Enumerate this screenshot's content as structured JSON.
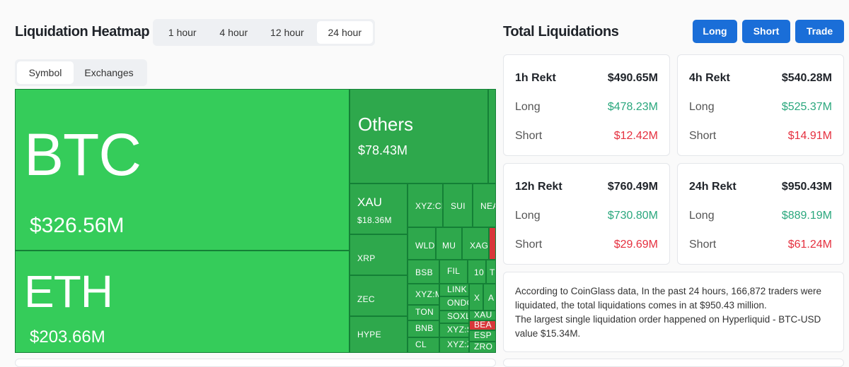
{
  "heatmap": {
    "title": "Liquidation Heatmap",
    "time_tabs": [
      "1 hour",
      "4 hour",
      "12 hour",
      "24 hour"
    ],
    "active_time_tab": "24 hour",
    "view_tabs": [
      "Symbol",
      "Exchanges"
    ],
    "active_view_tab": "Symbol",
    "tiles": {
      "btc": {
        "symbol": "BTC",
        "value": "$326.56M"
      },
      "eth": {
        "symbol": "ETH",
        "value": "$203.66M"
      },
      "others": {
        "symbol": "Others",
        "value": "$78.43M"
      },
      "xau": {
        "symbol": "XAU",
        "value": "$18.36M"
      },
      "xrp": {
        "symbol": "XRP"
      },
      "zec": {
        "symbol": "ZEC"
      },
      "hype": {
        "symbol": "HYPE"
      },
      "xyz_cl": {
        "symbol": "XYZ:CL"
      },
      "sui": {
        "symbol": "SUI"
      },
      "nea": {
        "symbol": "NEA"
      },
      "wld": {
        "symbol": "WLD"
      },
      "mu": {
        "symbol": "MU"
      },
      "xag": {
        "symbol": "XAG"
      },
      "bsb": {
        "symbol": "BSB"
      },
      "fil": {
        "symbol": "FIL"
      },
      "n10": {
        "symbol": "10"
      },
      "t": {
        "symbol": "T"
      },
      "xyz_m": {
        "symbol": "XYZ:M"
      },
      "link": {
        "symbol": "LINK"
      },
      "x": {
        "symbol": "X"
      },
      "a": {
        "symbol": "A"
      },
      "ond": {
        "symbol": "ONDO"
      },
      "ton": {
        "symbol": "TON"
      },
      "soxl": {
        "symbol": "SOXL"
      },
      "xau2": {
        "symbol": "XAU"
      },
      "bnb": {
        "symbol": "BNB"
      },
      "bea": {
        "symbol": "BEA"
      },
      "xyz_s": {
        "symbol": "XYZ:S"
      },
      "esp": {
        "symbol": "ESP"
      },
      "cl": {
        "symbol": "CL"
      },
      "xyz_z": {
        "symbol": "XYZ:Z"
      },
      "zro": {
        "symbol": "ZRO"
      }
    }
  },
  "totals": {
    "title": "Total Liquidations",
    "buttons": {
      "long": "Long",
      "short": "Short",
      "trade": "Trade"
    },
    "cards": [
      {
        "label": "1h Rekt",
        "total": "$490.65M",
        "long_label": "Long",
        "long": "$478.23M",
        "short_label": "Short",
        "short": "$12.42M"
      },
      {
        "label": "4h Rekt",
        "total": "$540.28M",
        "long_label": "Long",
        "long": "$525.37M",
        "short_label": "Short",
        "short": "$14.91M"
      },
      {
        "label": "12h Rekt",
        "total": "$760.49M",
        "long_label": "Long",
        "long": "$730.80M",
        "short_label": "Short",
        "short": "$29.69M"
      },
      {
        "label": "24h Rekt",
        "total": "$950.43M",
        "long_label": "Long",
        "long": "$889.19M",
        "short_label": "Short",
        "short": "$61.24M"
      }
    ],
    "description_line1": "According to CoinGlass data, In the past 24 hours, 166,872 traders were liquidated, the total liquidations comes in at $950.43 million.",
    "description_line2": "The largest single liquidation order happened on Hyperliquid - BTC-USD value $15.34M."
  },
  "colors": {
    "accent": "#1a6ed8",
    "green_bright": "#35cc5a",
    "green_dark": "#1e8a3c",
    "long_text": "#2aa77d",
    "short_text": "#e5303f",
    "red_tile": "#d8373a"
  }
}
